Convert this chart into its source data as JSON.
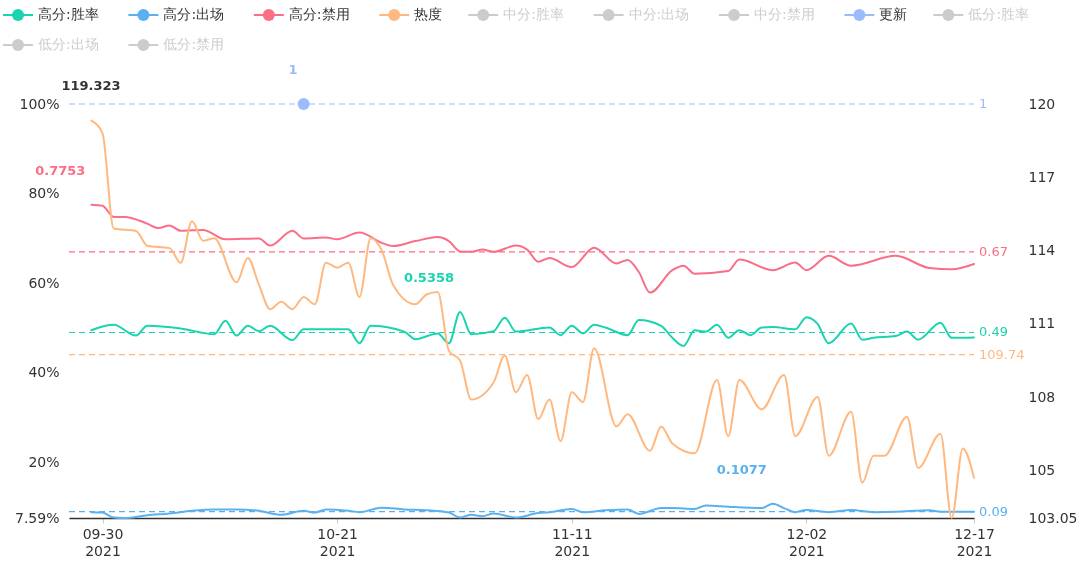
{
  "chart_data": {
    "type": "line",
    "xlim": [
      "2021-09-27",
      "2021-12-17"
    ],
    "xticks": [
      {
        "value": "2021-09-30",
        "label": "09-30\n2021"
      },
      {
        "value": "2021-10-21",
        "label": "10-21\n2021"
      },
      {
        "value": "2021-11-11",
        "label": "11-11\n2021"
      },
      {
        "value": "2021-12-02",
        "label": "12-02\n2021"
      },
      {
        "value": "2021-12-17",
        "label": "12-17\n2021"
      }
    ],
    "ylim": [
      0.0759,
      1
    ],
    "yticks": [
      {
        "value": 0.0759,
        "label": "7.59%"
      },
      {
        "value": 0.2,
        "label": "20%"
      },
      {
        "value": 0.4,
        "label": "40%"
      },
      {
        "value": 0.6,
        "label": "60%"
      },
      {
        "value": 0.8,
        "label": "80%"
      },
      {
        "value": 1,
        "label": "100%"
      }
    ],
    "y2lim": [
      103.05,
      120
    ],
    "y2ticks": [
      103.05,
      105,
      108,
      111,
      114,
      117,
      120
    ],
    "grid": false,
    "legend": "top",
    "series": [
      {
        "name": "高分:胜率",
        "color": "#19d4ae",
        "axis": "y",
        "x": [
          "2021-09-29",
          "2021-10-01",
          "2021-10-03",
          "2021-10-04",
          "2021-10-07",
          "2021-10-10",
          "2021-10-11",
          "2021-10-12",
          "2021-10-13",
          "2021-10-14",
          "2021-10-15",
          "2021-10-17",
          "2021-10-18",
          "2021-10-22",
          "2021-10-23",
          "2021-10-24",
          "2021-10-27",
          "2021-10-28",
          "2021-10-30",
          "2021-10-31",
          "2021-11-01",
          "2021-11-02",
          "2021-11-04",
          "2021-11-05",
          "2021-11-06",
          "2021-11-09",
          "2021-11-10",
          "2021-11-11",
          "2021-11-12",
          "2021-11-13",
          "2021-11-14",
          "2021-11-16",
          "2021-11-17",
          "2021-11-19",
          "2021-11-20",
          "2021-11-21",
          "2021-11-22",
          "2021-11-23",
          "2021-11-24",
          "2021-11-25",
          "2021-11-26",
          "2021-11-27",
          "2021-11-28",
          "2021-11-29",
          "2021-12-01",
          "2021-12-02",
          "2021-12-03",
          "2021-12-04",
          "2021-12-06",
          "2021-12-07",
          "2021-12-08",
          "2021-12-10",
          "2021-12-11",
          "2021-12-12",
          "2021-12-14",
          "2021-12-15",
          "2021-12-17"
        ],
        "values": [
          0.495,
          0.507,
          0.483,
          0.505,
          0.499,
          0.486,
          0.516,
          0.483,
          0.505,
          0.493,
          0.505,
          0.473,
          0.497,
          0.497,
          0.466,
          0.505,
          0.492,
          0.475,
          0.488,
          0.466,
          0.5358,
          0.486,
          0.493,
          0.523,
          0.492,
          0.501,
          0.484,
          0.505,
          0.488,
          0.507,
          0.501,
          0.484,
          0.518,
          0.505,
          0.478,
          0.46,
          0.495,
          0.492,
          0.507,
          0.478,
          0.495,
          0.484,
          0.501,
          0.502,
          0.497,
          0.524,
          0.509,
          0.466,
          0.51,
          0.474,
          0.478,
          0.482,
          0.492,
          0.474,
          0.512,
          0.478,
          0.479
        ]
      },
      {
        "name": "高分:出场",
        "color": "#5ab1ef",
        "axis": "y",
        "x": [
          "2021-09-29",
          "2021-09-30",
          "2021-10-01",
          "2021-10-02",
          "2021-10-04",
          "2021-10-06",
          "2021-10-08",
          "2021-10-10",
          "2021-10-12",
          "2021-10-14",
          "2021-10-16",
          "2021-10-18",
          "2021-10-19",
          "2021-10-20",
          "2021-10-22",
          "2021-10-23",
          "2021-10-25",
          "2021-10-27",
          "2021-10-29",
          "2021-10-31",
          "2021-11-01",
          "2021-11-02",
          "2021-11-03",
          "2021-11-04",
          "2021-11-06",
          "2021-11-08",
          "2021-11-09",
          "2021-11-11",
          "2021-11-12",
          "2021-11-14",
          "2021-11-16",
          "2021-11-17",
          "2021-11-19",
          "2021-11-20",
          "2021-11-22",
          "2021-11-23",
          "2021-11-25",
          "2021-11-28",
          "2021-11-29",
          "2021-11-30",
          "2021-12-01",
          "2021-12-02",
          "2021-12-04",
          "2021-12-06",
          "2021-12-08",
          "2021-12-10",
          "2021-12-13",
          "2021-12-14",
          "2021-12-17"
        ],
        "values": [
          0.089,
          0.088,
          0.077,
          0.0759,
          0.082,
          0.086,
          0.092,
          0.095,
          0.095,
          0.092,
          0.083,
          0.092,
          0.088,
          0.095,
          0.092,
          0.089,
          0.099,
          0.095,
          0.093,
          0.088,
          0.077,
          0.083,
          0.08,
          0.086,
          0.077,
          0.087,
          0.089,
          0.096,
          0.089,
          0.093,
          0.095,
          0.085,
          0.098,
          0.098,
          0.096,
          0.104,
          0.101,
          0.098,
          0.1077,
          0.098,
          0.089,
          0.094,
          0.089,
          0.094,
          0.089,
          0.09,
          0.093,
          0.09,
          0.09
        ]
      },
      {
        "name": "高分:禁用",
        "color": "#fa6e86",
        "axis": "y",
        "x": [
          "2021-09-29",
          "2021-09-30",
          "2021-10-01",
          "2021-10-02",
          "2021-10-04",
          "2021-10-05",
          "2021-10-06",
          "2021-10-07",
          "2021-10-09",
          "2021-10-11",
          "2021-10-14",
          "2021-10-15",
          "2021-10-17",
          "2021-10-18",
          "2021-10-20",
          "2021-10-21",
          "2021-10-23",
          "2021-10-25",
          "2021-10-26",
          "2021-10-28",
          "2021-10-30",
          "2021-10-31",
          "2021-11-01",
          "2021-11-02",
          "2021-11-03",
          "2021-11-04",
          "2021-11-06",
          "2021-11-07",
          "2021-11-08",
          "2021-11-09",
          "2021-11-11",
          "2021-11-13",
          "2021-11-15",
          "2021-11-16",
          "2021-11-17",
          "2021-11-18",
          "2021-11-20",
          "2021-11-21",
          "2021-11-22",
          "2021-11-25",
          "2021-11-26",
          "2021-11-29",
          "2021-12-01",
          "2021-12-02",
          "2021-12-04",
          "2021-12-06",
          "2021-12-10",
          "2021-12-13",
          "2021-12-15",
          "2021-12-17"
        ],
        "values": [
          0.7753,
          0.773,
          0.748,
          0.748,
          0.733,
          0.723,
          0.729,
          0.717,
          0.719,
          0.698,
          0.7,
          0.684,
          0.717,
          0.7,
          0.702,
          0.698,
          0.713,
          0.69,
          0.683,
          0.694,
          0.703,
          0.694,
          0.671,
          0.67,
          0.675,
          0.67,
          0.684,
          0.675,
          0.648,
          0.656,
          0.636,
          0.679,
          0.644,
          0.652,
          0.625,
          0.579,
          0.629,
          0.639,
          0.621,
          0.627,
          0.653,
          0.629,
          0.646,
          0.629,
          0.661,
          0.639,
          0.661,
          0.634,
          0.631,
          0.643
        ]
      },
      {
        "name": "热度",
        "color": "#ffb980",
        "axis": "y2",
        "x": [
          "2021-09-29",
          "2021-09-30",
          "2021-10-01",
          "2021-10-03",
          "2021-10-04",
          "2021-10-06",
          "2021-10-07",
          "2021-10-08",
          "2021-10-09",
          "2021-10-10",
          "2021-10-12",
          "2021-10-13",
          "2021-10-14",
          "2021-10-15",
          "2021-10-16",
          "2021-10-17",
          "2021-10-18",
          "2021-10-19",
          "2021-10-20",
          "2021-10-21",
          "2021-10-22",
          "2021-10-23",
          "2021-10-24",
          "2021-10-25",
          "2021-10-26",
          "2021-10-28",
          "2021-10-29",
          "2021-10-30",
          "2021-10-31",
          "2021-11-01",
          "2021-11-02",
          "2021-11-04",
          "2021-11-05",
          "2021-11-06",
          "2021-11-07",
          "2021-11-08",
          "2021-11-09",
          "2021-11-10",
          "2021-11-11",
          "2021-11-12",
          "2021-11-13",
          "2021-11-15",
          "2021-11-16",
          "2021-11-18",
          "2021-11-19",
          "2021-11-20",
          "2021-11-22",
          "2021-11-24",
          "2021-11-25",
          "2021-11-26",
          "2021-11-28",
          "2021-11-30",
          "2021-12-01",
          "2021-12-03",
          "2021-12-04",
          "2021-12-06",
          "2021-12-07",
          "2021-12-08",
          "2021-12-09",
          "2021-12-11",
          "2021-12-12",
          "2021-12-14",
          "2021-12-15",
          "2021-12-16",
          "2021-12-17"
        ],
        "values": [
          119.323,
          118.8,
          114.9,
          114.8,
          114.2,
          114.1,
          113.5,
          115.2,
          114.4,
          114.5,
          112.7,
          113.7,
          112.6,
          111.6,
          111.9,
          111.6,
          112.1,
          111.8,
          113.5,
          113.3,
          113.5,
          112.1,
          114.5,
          114.0,
          112.6,
          111.8,
          112.2,
          112.3,
          109.9,
          109.5,
          107.9,
          108.6,
          109.7,
          108.2,
          108.9,
          107.1,
          107.9,
          106.2,
          108.2,
          107.8,
          110.0,
          106.8,
          107.3,
          105.8,
          106.8,
          106.1,
          105.7,
          108.7,
          106.4,
          108.7,
          107.5,
          108.9,
          106.4,
          108.0,
          105.6,
          107.4,
          104.5,
          105.6,
          105.6,
          107.2,
          105.1,
          106.5,
          103.05,
          105.9,
          104.7
        ]
      },
      {
        "name": "中分:胜率",
        "color": "#cccccc"
      },
      {
        "name": "中分:出场",
        "color": "#cccccc"
      },
      {
        "name": "中分:禁用",
        "color": "#cccccc"
      },
      {
        "name": "更新",
        "color": "#9cbbfd",
        "axis": "y",
        "marker": "circle",
        "x": [
          "2021-10-18"
        ],
        "values": [
          1
        ]
      },
      {
        "name": "低分:胜率",
        "color": "#cccccc"
      },
      {
        "name": "低分:出场",
        "color": "#cccccc"
      },
      {
        "name": "低分:禁用",
        "color": "#cccccc"
      }
    ],
    "ref_lines": [
      {
        "axis": "y",
        "value": 0.49,
        "label": "0.49",
        "color": "#19d4ae",
        "line_style": "dashed"
      },
      {
        "axis": "y",
        "value": 0.09,
        "label": "0.09",
        "color": "#5ab1ef",
        "line_style": "dashed"
      },
      {
        "axis": "y",
        "value": 0.67,
        "label": "0.67",
        "color": "#fa6e86",
        "line_style": "dashed"
      },
      {
        "axis": "y2",
        "value": 109.74,
        "label": "109.74",
        "color": "#ffb980",
        "line_style": "dashed"
      },
      {
        "axis": "y",
        "value": 1,
        "label": "1",
        "color": "#9cbbfd",
        "line_style": "dashed"
      }
    ],
    "annotations": [
      {
        "text": "0.5358",
        "x": "2021-11-01",
        "y": 0.5358
      },
      {
        "text": "0.1077",
        "x": "2021-11-29",
        "y": 0.1077
      },
      {
        "text": "0.7753",
        "x": "2021-09-29",
        "y": 0.7753
      },
      "119.323",
      {
        "text": "1",
        "x": "2021-10-18",
        "y": 1
      }
    ]
  }
}
